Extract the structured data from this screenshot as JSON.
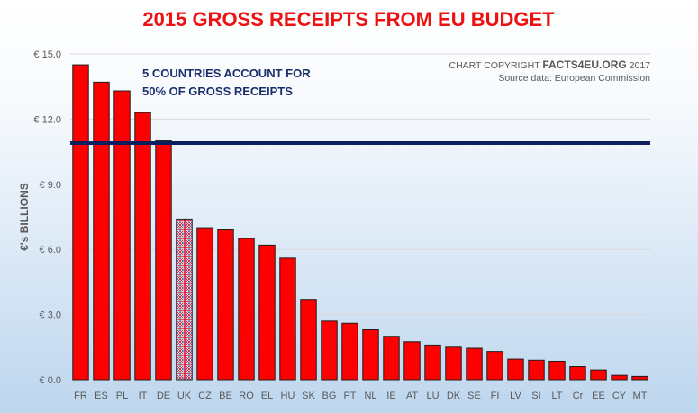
{
  "chart_data": {
    "type": "bar",
    "title": "2015 GROSS RECEIPTS FROM EU BUDGET",
    "ylabel": "€'s BILLIONS",
    "xlabel": "",
    "ylim": [
      0,
      15
    ],
    "yticks": [
      0,
      3,
      6,
      9,
      12,
      15
    ],
    "ytick_labels": [
      "€ 0.0",
      "€ 3.0",
      "€ 6.0",
      "€ 9.0",
      "€ 12.0",
      "€ 15.0"
    ],
    "categories": [
      "FR",
      "ES",
      "PL",
      "IT",
      "DE",
      "UK",
      "CZ",
      "BE",
      "RO",
      "EL",
      "HU",
      "SK",
      "BG",
      "PT",
      "NL",
      "IE",
      "AT",
      "LU",
      "DK",
      "SE",
      "FI",
      "LV",
      "SI",
      "LT",
      "Cr",
      "EE",
      "CY",
      "MT"
    ],
    "values": [
      14.5,
      13.7,
      13.3,
      12.3,
      11.0,
      7.4,
      7.0,
      6.9,
      6.5,
      6.2,
      5.6,
      3.7,
      2.7,
      2.6,
      2.3,
      2.0,
      1.75,
      1.6,
      1.5,
      1.45,
      1.3,
      0.95,
      0.9,
      0.85,
      0.6,
      0.45,
      0.2,
      0.15
    ],
    "highlight_category": "UK",
    "bar_color": "#ff0000",
    "highlight_pattern": "union-jack",
    "reference_line": {
      "value": 10.9,
      "color": "#0b1f5c"
    },
    "annotation": [
      "5 COUNTRIES ACCOUNT FOR",
      "50% OF GROSS RECEIPTS"
    ],
    "copyright": {
      "prefix": "CHART COPYRIGHT ",
      "brand": "FACTS4EU.ORG",
      "suffix": " 2017",
      "source": "Source data: European Commission"
    },
    "grid": true,
    "legend": "none"
  }
}
